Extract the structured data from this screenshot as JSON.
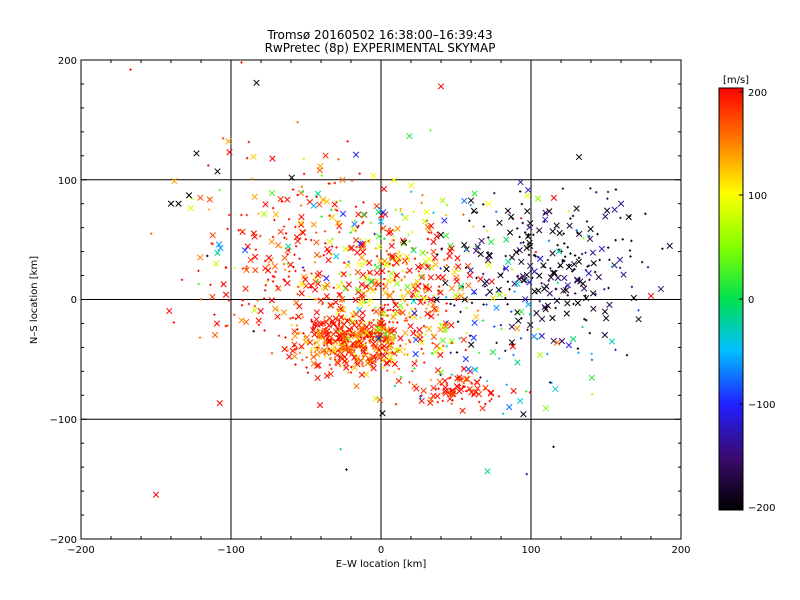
{
  "chart_data": {
    "type": "scatter",
    "title": "Tromsø 20160502 16:38:00–16:39:43",
    "subtitle": "RwPretec (8p) EXPERIMENTAL SKYMAP",
    "xlabel": "E–W location [km]",
    "ylabel": "N–S location [km]",
    "xlim": [
      -200,
      200
    ],
    "ylim": [
      -200,
      200
    ],
    "xticks": [
      "−200",
      "−100",
      "0",
      "100",
      "200"
    ],
    "yticks": [
      "−200",
      "−100",
      "0",
      "100",
      "200"
    ],
    "grid": true,
    "colorbar": {
      "label": "[m/s]",
      "range": [
        -200,
        200
      ],
      "ticks": [
        "200",
        "100",
        "0",
        "−100",
        "−200"
      ],
      "colormap": "black-purple-blue-cyan-green-yellow-red"
    },
    "markers": [
      "x",
      "+"
    ],
    "notable_points": [
      {
        "x": 40,
        "y": 178,
        "v": 200,
        "m": "x"
      },
      {
        "x": -83,
        "y": 181,
        "v": -200,
        "m": "x"
      },
      {
        "x": -123,
        "y": 122,
        "v": -200,
        "m": "x"
      },
      {
        "x": -109,
        "y": 107,
        "v": -200,
        "m": "x"
      },
      {
        "x": -101,
        "y": 123,
        "v": 200,
        "m": "x"
      },
      {
        "x": -128,
        "y": 87,
        "v": -200,
        "m": "x"
      },
      {
        "x": -140,
        "y": 80,
        "v": -200,
        "m": "x"
      },
      {
        "x": -135,
        "y": 80,
        "v": -200,
        "m": "x"
      },
      {
        "x": -150,
        "y": -163,
        "v": 200,
        "m": "x"
      },
      {
        "x": 132,
        "y": 119,
        "v": -200,
        "m": "x"
      },
      {
        "x": 1,
        "y": -95,
        "v": -200,
        "m": "x"
      },
      {
        "x": -110,
        "y": 30,
        "v": 80,
        "m": "x"
      },
      {
        "x": -108,
        "y": 46,
        "v": -60,
        "m": "x"
      },
      {
        "x": -107,
        "y": 43,
        "v": -60,
        "m": "x"
      },
      {
        "x": -109,
        "y": 39,
        "v": -30,
        "m": "x"
      },
      {
        "x": 154,
        "y": -35,
        "v": -30,
        "m": "x"
      },
      {
        "x": 180,
        "y": 3,
        "v": 200,
        "m": "x"
      },
      {
        "x": -167,
        "y": 192,
        "v": 200,
        "m": "+"
      },
      {
        "x": -93,
        "y": 198,
        "v": 200,
        "m": "+"
      },
      {
        "x": 115,
        "y": -123,
        "v": -200,
        "m": "+"
      },
      {
        "x": -23,
        "y": -142,
        "v": -200,
        "m": "+"
      },
      {
        "x": -27,
        "y": -125,
        "v": -30,
        "m": "+"
      }
    ],
    "clusters": [
      {
        "cx": -20,
        "cy": -35,
        "sx": 18,
        "sy": 12,
        "n": 420,
        "v_mean": 175,
        "v_sd": 45
      },
      {
        "cx": 10,
        "cy": 5,
        "sx": 25,
        "sy": 30,
        "n": 380,
        "v_mean": 150,
        "v_sd": 70
      },
      {
        "cx": 50,
        "cy": -75,
        "sx": 15,
        "sy": 6,
        "n": 90,
        "v_mean": 190,
        "v_sd": 20
      },
      {
        "cx": 115,
        "cy": 30,
        "sx": 30,
        "sy": 30,
        "n": 230,
        "v_mean": -185,
        "v_sd": 30
      },
      {
        "cx": -55,
        "cy": 30,
        "sx": 35,
        "sy": 45,
        "n": 260,
        "v_mean": 185,
        "v_sd": 40
      },
      {
        "cx": 80,
        "cy": -20,
        "sx": 35,
        "sy": 45,
        "n": 110,
        "v_mean": -80,
        "v_sd": 90
      },
      {
        "cx": 0,
        "cy": 50,
        "sx": 55,
        "sy": 40,
        "n": 150,
        "v_mean": 60,
        "v_sd": 130
      }
    ]
  }
}
